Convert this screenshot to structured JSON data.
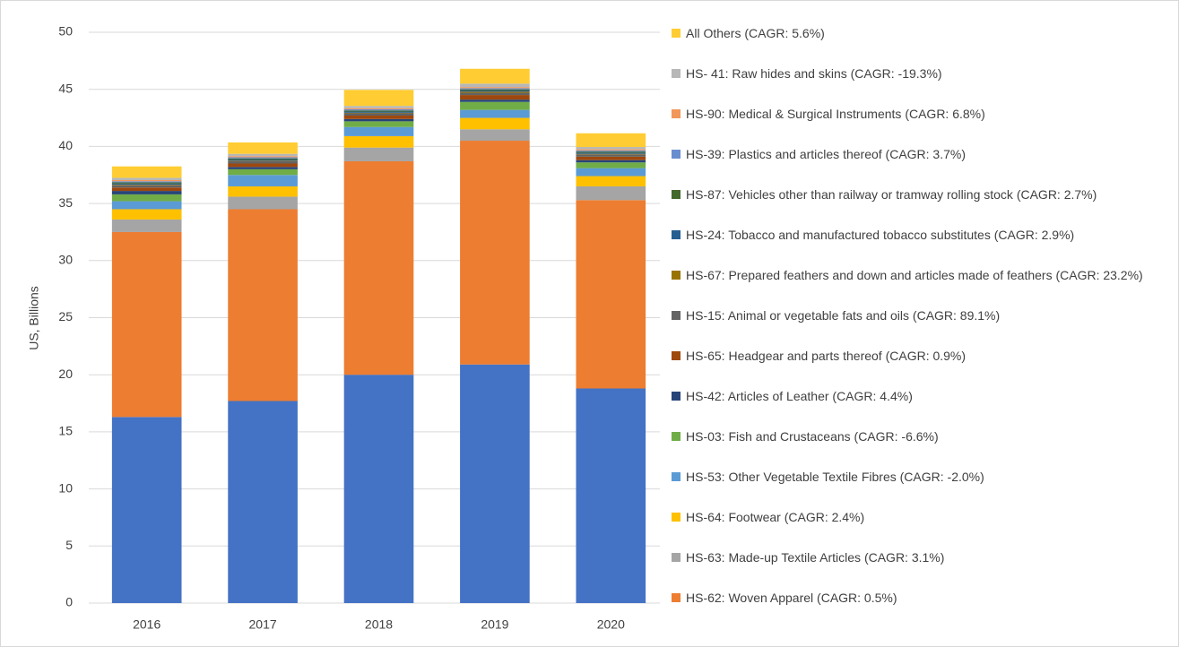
{
  "chart_data": {
    "type": "bar",
    "stacked": true,
    "y_label": "US, Billions",
    "categories": [
      "2016",
      "2017",
      "2018",
      "2019",
      "2020"
    ],
    "ylim": [
      0,
      50
    ],
    "yticks": [
      0,
      5,
      10,
      15,
      20,
      25,
      30,
      35,
      40,
      45,
      50
    ],
    "grid": true,
    "series": [
      {
        "color": "#4472c4",
        "values": [
          16.3,
          17.7,
          20.0,
          20.9,
          18.8
        ]
      },
      {
        "name": "HS-62: Woven Apparel (CAGR: 0.5%)",
        "color": "#ed7d31",
        "values": [
          16.2,
          16.8,
          18.7,
          19.6,
          16.5
        ]
      },
      {
        "name": "HS-63: Made-up Textile Articles (CAGR: 3.1%)",
        "color": "#a5a5a5",
        "values": [
          1.1,
          1.1,
          1.2,
          1.0,
          1.2
        ]
      },
      {
        "name": "HS-64: Footwear (CAGR: 2.4%)",
        "color": "#ffc000",
        "values": [
          0.9,
          0.9,
          1.0,
          1.0,
          0.9
        ]
      },
      {
        "name": "HS-53: Other Vegetable Textile Fibres (CAGR: -2.0%)",
        "color": "#5b9bd5",
        "values": [
          0.7,
          1.0,
          0.8,
          0.7,
          0.7
        ]
      },
      {
        "name": "HS-03: Fish and Crustaceans (CAGR: -6.6%)",
        "color": "#70ad47",
        "values": [
          0.6,
          0.5,
          0.5,
          0.7,
          0.5
        ]
      },
      {
        "name": "HS-42: Articles of Leather (CAGR: 4.4%)",
        "color": "#264478",
        "values": [
          0.3,
          0.2,
          0.2,
          0.2,
          0.2
        ]
      },
      {
        "name": "HS-65: Headgear and parts thereof (CAGR: 0.9%)",
        "color": "#9e480e",
        "values": [
          0.3,
          0.3,
          0.3,
          0.4,
          0.3
        ]
      },
      {
        "name": "HS-15: Animal or vegetable fats and oils (CAGR: 89.1%)",
        "color": "#636363",
        "values": [
          0.2,
          0.2,
          0.2,
          0.2,
          0.2
        ]
      },
      {
        "name": "HS-67: Prepared feathers and down and articles made of feathers (CAGR: 23.2%)",
        "color": "#997300",
        "values": [
          0.05,
          0.05,
          0.05,
          0.1,
          0.05
        ]
      },
      {
        "name": "HS-24: Tobacco and manufactured tobacco substitutes (CAGR: 2.9%)",
        "color": "#255e91",
        "values": [
          0.1,
          0.1,
          0.1,
          0.1,
          0.1
        ]
      },
      {
        "name": "HS-87: Vehicles other than railway or tramway rolling stock (CAGR: 2.7%)",
        "color": "#43682b",
        "values": [
          0.1,
          0.1,
          0.1,
          0.1,
          0.1
        ]
      },
      {
        "name": "HS-39: Plastics and articles thereof (CAGR: 3.7%)",
        "color": "#698ed0",
        "values": [
          0.1,
          0.1,
          0.1,
          0.1,
          0.1
        ]
      },
      {
        "name": "HS-90: Medical & Surgical Instruments (CAGR: 6.8%)",
        "color": "#f1975a",
        "values": [
          0.1,
          0.1,
          0.1,
          0.1,
          0.1
        ]
      },
      {
        "name": "HS- 41: Raw hides and skins (CAGR: -19.3%)",
        "color": "#b7b7b7",
        "values": [
          0.2,
          0.2,
          0.2,
          0.3,
          0.2
        ]
      },
      {
        "name": "All Others (CAGR: 5.6%)",
        "color": "#ffcd33",
        "values": [
          1.0,
          1.0,
          1.4,
          1.3,
          1.2
        ]
      }
    ]
  }
}
